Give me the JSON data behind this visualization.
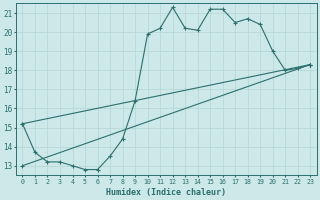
{
  "xlabel": "Humidex (Indice chaleur)",
  "bg_color": "#cce8e8",
  "grid_color": "#b8d8d8",
  "line_color": "#2d6e6e",
  "xlim": [
    -0.5,
    23.5
  ],
  "ylim": [
    12.5,
    21.5
  ],
  "xticks": [
    0,
    1,
    2,
    3,
    4,
    5,
    6,
    7,
    8,
    9,
    10,
    11,
    12,
    13,
    14,
    15,
    16,
    17,
    18,
    19,
    20,
    21,
    22,
    23
  ],
  "yticks": [
    13,
    14,
    15,
    16,
    17,
    18,
    19,
    20,
    21
  ],
  "line1_x": [
    0,
    1,
    2,
    3,
    4,
    5,
    6,
    7,
    8,
    9,
    10,
    11,
    12,
    13,
    14,
    15,
    16,
    17,
    18,
    19,
    20,
    21,
    22,
    23
  ],
  "line1_y": [
    15.2,
    13.7,
    13.2,
    13.2,
    13.0,
    12.8,
    12.8,
    13.5,
    14.4,
    16.4,
    19.9,
    20.2,
    21.3,
    20.2,
    20.1,
    21.2,
    21.2,
    20.5,
    20.7,
    20.4,
    19.0,
    18.0,
    18.1,
    18.3
  ],
  "line2_x": [
    0,
    23
  ],
  "line2_y": [
    15.2,
    18.3
  ],
  "line3_x": [
    0,
    23
  ],
  "line3_y": [
    13.0,
    18.3
  ]
}
